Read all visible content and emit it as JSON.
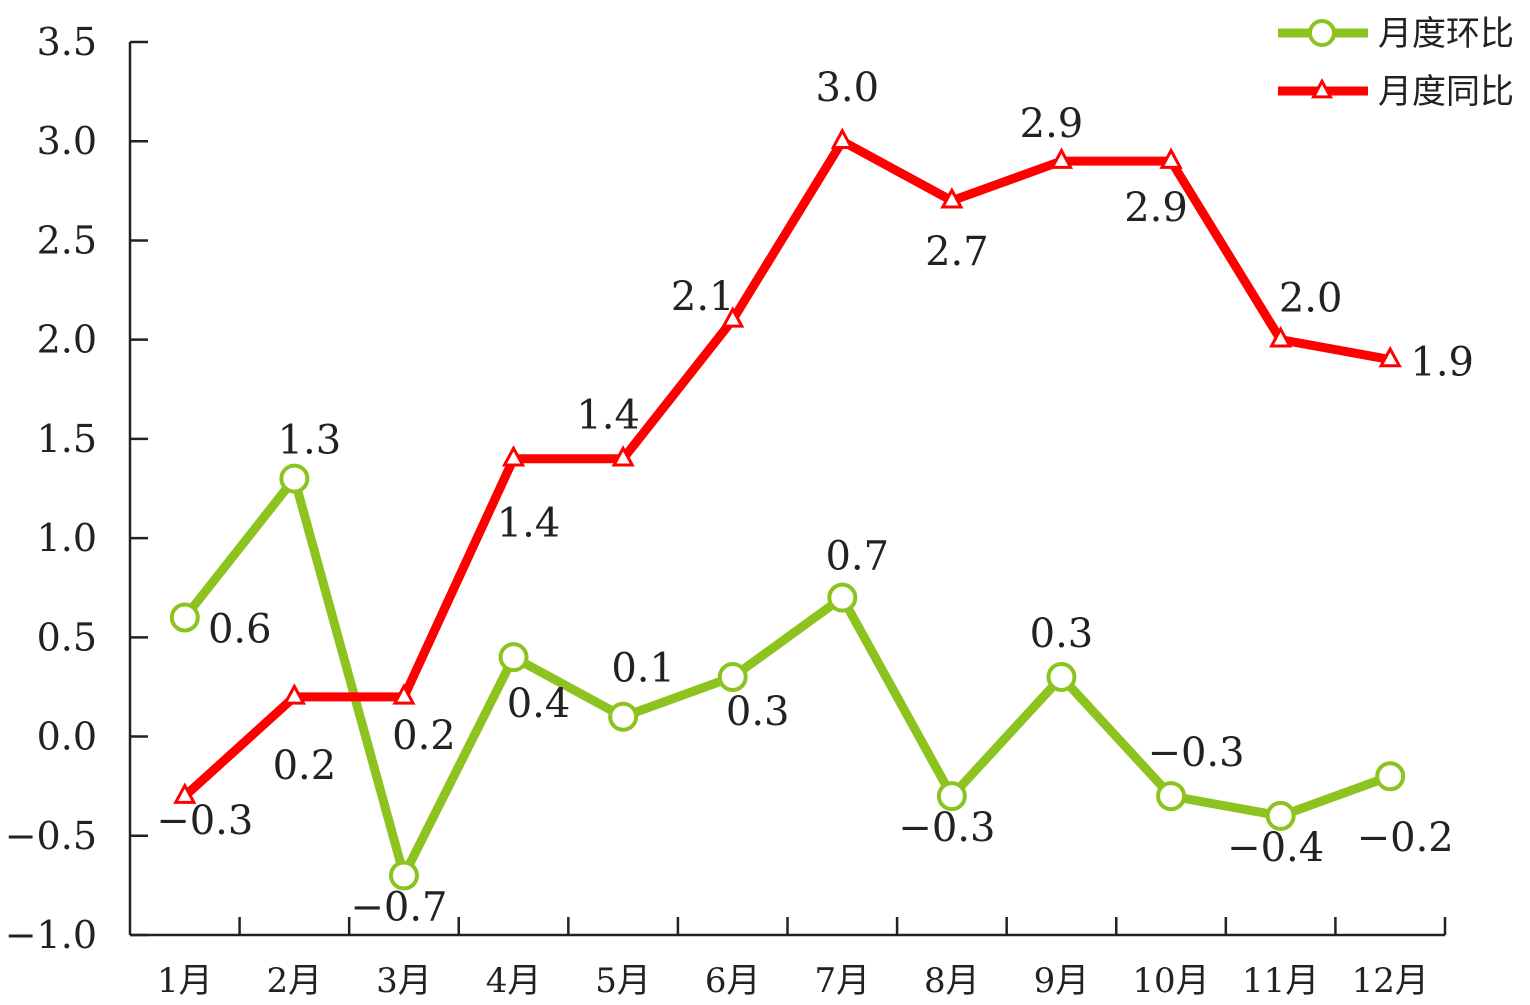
{
  "chart_data": {
    "type": "line",
    "categories": [
      "1月",
      "2月",
      "3月",
      "4月",
      "5月",
      "6月",
      "7月",
      "8月",
      "9月",
      "10月",
      "11月",
      "12月"
    ],
    "series": [
      {
        "name": "月度环比",
        "color": "#8cc31e",
        "marker": "circle",
        "values": [
          0.6,
          1.3,
          -0.7,
          0.4,
          0.1,
          0.3,
          0.7,
          -0.3,
          0.3,
          -0.3,
          -0.4,
          -0.2
        ],
        "labels": [
          "0.6",
          "1.3",
          "−0.7",
          "0.4",
          "0.1",
          "0.3",
          "0.7",
          "−0.3",
          "0.3",
          "−0.3",
          "−0.4",
          "−0.2"
        ]
      },
      {
        "name": "月度同比",
        "color": "#ff0000",
        "marker": "triangle",
        "values": [
          -0.3,
          0.2,
          0.2,
          1.4,
          1.4,
          2.1,
          3.0,
          2.7,
          2.9,
          2.9,
          2.0,
          1.9
        ],
        "labels": [
          "−0.3",
          "0.2",
          "0.2",
          "1.4",
          "1.4",
          "2.1",
          "3.0",
          "2.7",
          "2.9",
          "2.9",
          "2.0",
          "1.9"
        ]
      }
    ],
    "y_ticks": [
      "−1.0",
      "−0.5",
      "0.0",
      "0.5",
      "1.0",
      "1.5",
      "2.0",
      "2.5",
      "3.0",
      "3.5"
    ],
    "ylim": [
      -1.0,
      3.5
    ],
    "grid": false,
    "legend_position": "top-right"
  }
}
